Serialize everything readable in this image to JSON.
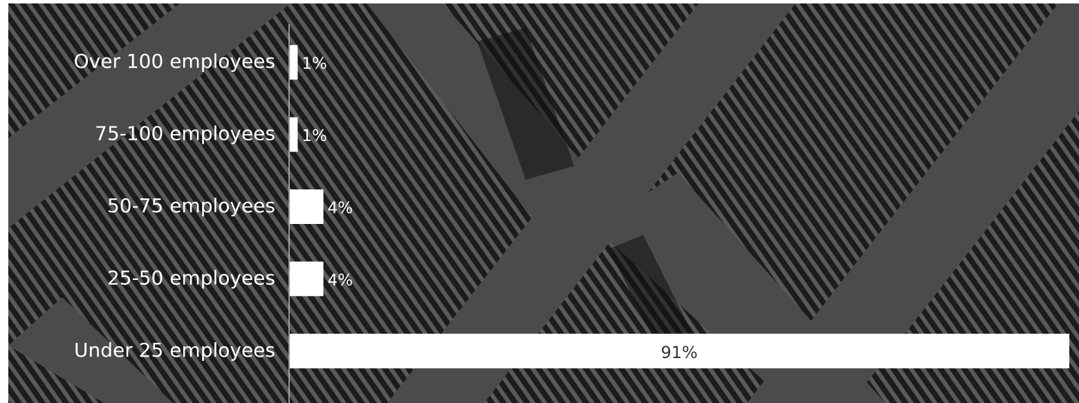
{
  "chart_data": {
    "type": "bar",
    "orientation": "horizontal",
    "categories": [
      "Over 100 employees",
      "75-100 employees",
      "50-75 employees",
      "25-50 employees",
      "Under 25 employees"
    ],
    "values": [
      1,
      1,
      4,
      4,
      91
    ],
    "value_labels": [
      "1%",
      "1%",
      "4%",
      "4%",
      "91%"
    ],
    "color": "#ffffff"
  }
}
